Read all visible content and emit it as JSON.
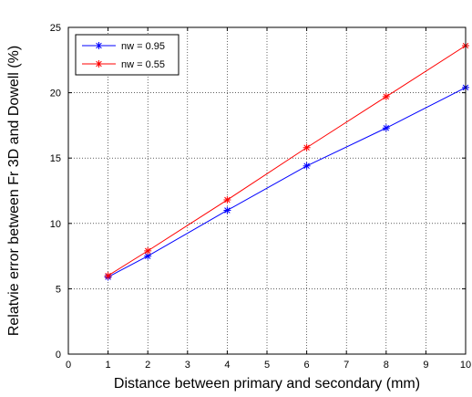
{
  "chart_data": {
    "type": "line",
    "title": "",
    "xlabel": "Distance between primary and secondary (mm)",
    "ylabel": "Relatvie error between Fr 3D and Dowell (%)",
    "xlim": [
      0,
      10
    ],
    "ylim": [
      0,
      25
    ],
    "xticks": [
      "0",
      "1",
      "2",
      "3",
      "4",
      "5",
      "6",
      "7",
      "8",
      "9",
      "10"
    ],
    "yticks": [
      "0",
      "5",
      "10",
      "15",
      "20",
      "25"
    ],
    "grid": true,
    "legend_position": "top-left",
    "marker": "asterisk",
    "series": [
      {
        "name": "nw = 0.95",
        "color": "#0000ff",
        "x": [
          1,
          2,
          4,
          6,
          8,
          10
        ],
        "y": [
          5.9,
          7.5,
          11.0,
          14.4,
          17.3,
          20.4
        ]
      },
      {
        "name": "nw = 0.55",
        "color": "#ff0000",
        "x": [
          1,
          2,
          4,
          6,
          8,
          10
        ],
        "y": [
          6.0,
          7.9,
          11.8,
          15.8,
          19.7,
          23.6
        ]
      }
    ]
  }
}
